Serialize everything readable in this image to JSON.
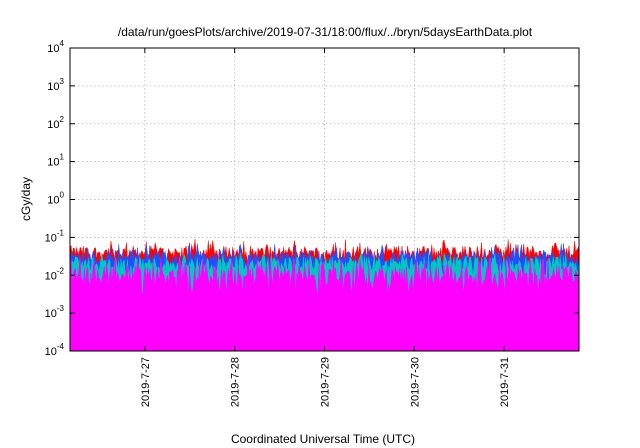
{
  "chart_data": {
    "type": "area",
    "title": "/data/run/goesPlots/archive/2019-07-31/18:00/flux/../bryn/5daysEarthData.plot",
    "xlabel": "Coordinated Universal Time (UTC)",
    "ylabel": "cGy/day",
    "yscale": "log",
    "ylim": [
      0.0001,
      10000
    ],
    "yticks": [
      {
        "base": "10",
        "exp": "-4"
      },
      {
        "base": "10",
        "exp": "-3"
      },
      {
        "base": "10",
        "exp": "-2"
      },
      {
        "base": "10",
        "exp": "-1"
      },
      {
        "base": "10",
        "exp": "0"
      },
      {
        "base": "10",
        "exp": "1"
      },
      {
        "base": "10",
        "exp": "2"
      },
      {
        "base": "10",
        "exp": "3"
      },
      {
        "base": "10",
        "exp": "4"
      }
    ],
    "xlim": [
      "2019-07-26T04:00",
      "2019-07-31T20:00"
    ],
    "xticks": [
      "2019-7-27",
      "2019-7-28",
      "2019-7-29",
      "2019-7-30",
      "2019-7-31"
    ],
    "grid": true,
    "series": [
      {
        "color": "#ff0000",
        "typical": 0.04,
        "range": [
          0.02,
          0.09
        ]
      },
      {
        "color": "#1f4fff",
        "typical": 0.03,
        "range": [
          0.015,
          0.07
        ]
      },
      {
        "color": "#00c8c0",
        "typical": 0.02,
        "range": [
          0.008,
          0.04
        ]
      },
      {
        "color": "#ff00ff",
        "typical": 0.01,
        "range": [
          0.003,
          0.03
        ]
      }
    ]
  }
}
